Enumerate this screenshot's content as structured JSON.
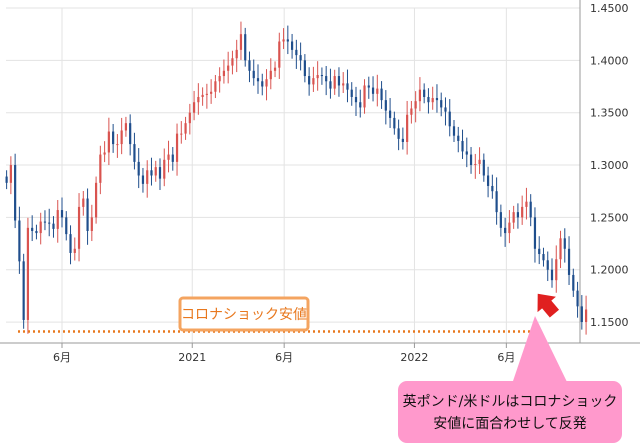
{
  "chart_data": {
    "type": "candlestick",
    "title": "",
    "xlabel": "",
    "ylabel": "",
    "ylim": [
      1.13,
      1.45
    ],
    "y_ticks": [
      1.15,
      1.2,
      1.25,
      1.3,
      1.35,
      1.4,
      1.45
    ],
    "y_tick_labels": [
      "1.1500",
      "1.2000",
      "1.2500",
      "1.3000",
      "1.3500",
      "1.4000",
      "1.4500"
    ],
    "x_ticks": [
      {
        "date": "2020-06-01",
        "label": "6月"
      },
      {
        "date": "2021-01-01",
        "label": "2021"
      },
      {
        "date": "2021-06-01",
        "label": "6月"
      },
      {
        "date": "2022-01-01",
        "label": "2022"
      },
      {
        "date": "2022-06-01",
        "label": "6月"
      }
    ],
    "x_range": [
      "2020-03-01",
      "2022-09-30"
    ],
    "grid": true,
    "up_color": "#d9534f",
    "down_color": "#1f4e8c",
    "reference_line": {
      "value": 1.141,
      "color": "#e8781e",
      "style": "dotted",
      "label": "コロナショック安値"
    },
    "arrow_color": "#e02020",
    "callout": {
      "lines": [
        "英ポンド/米ドルはコロナショック",
        "安値に面合わせして反発"
      ],
      "color": "#ff99cc"
    },
    "series": [
      {
        "type": "weekly-candles",
        "start_date": "2020-03-02",
        "close": [
          1.283,
          1.3,
          1.247,
          1.208,
          1.152,
          1.24,
          1.237,
          1.235,
          1.246,
          1.245,
          1.244,
          1.239,
          1.257,
          1.25,
          1.234,
          1.216,
          1.22,
          1.26,
          1.268,
          1.237,
          1.25,
          1.283,
          1.31,
          1.312,
          1.332,
          1.32,
          1.32,
          1.333,
          1.34,
          1.32,
          1.303,
          1.29,
          1.282,
          1.295,
          1.29,
          1.298,
          1.287,
          1.305,
          1.31,
          1.303,
          1.33,
          1.33,
          1.34,
          1.35,
          1.36,
          1.365,
          1.367,
          1.368,
          1.37,
          1.38,
          1.385,
          1.39,
          1.395,
          1.402,
          1.41,
          1.425,
          1.4,
          1.39,
          1.383,
          1.38,
          1.375,
          1.382,
          1.39,
          1.393,
          1.418,
          1.42,
          1.418,
          1.41,
          1.405,
          1.4,
          1.385,
          1.377,
          1.383,
          1.386,
          1.385,
          1.38,
          1.373,
          1.385,
          1.376,
          1.378,
          1.372,
          1.365,
          1.36,
          1.355,
          1.376,
          1.374,
          1.368,
          1.373,
          1.362,
          1.352,
          1.345,
          1.335,
          1.325,
          1.322,
          1.348,
          1.354,
          1.361,
          1.372,
          1.365,
          1.36,
          1.364,
          1.362,
          1.355,
          1.351,
          1.337,
          1.328,
          1.323,
          1.313,
          1.31,
          1.3,
          1.301,
          1.305,
          1.29,
          1.28,
          1.275,
          1.255,
          1.24,
          1.235,
          1.245,
          1.255,
          1.25,
          1.26,
          1.265,
          1.25,
          1.22,
          1.215,
          1.209,
          1.2,
          1.19,
          1.21,
          1.23,
          1.22,
          1.195,
          1.18,
          1.165,
          1.15,
          1.162
        ]
      }
    ]
  }
}
